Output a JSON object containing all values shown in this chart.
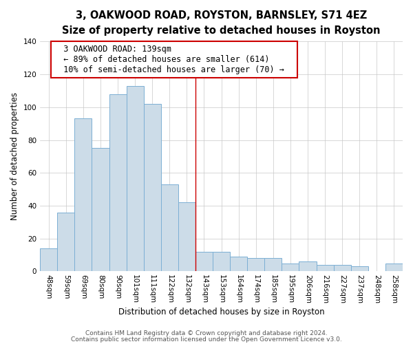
{
  "title": "3, OAKWOOD ROAD, ROYSTON, BARNSLEY, S71 4EZ",
  "subtitle": "Size of property relative to detached houses in Royston",
  "xlabel": "Distribution of detached houses by size in Royston",
  "ylabel": "Number of detached properties",
  "bar_labels": [
    "48sqm",
    "59sqm",
    "69sqm",
    "80sqm",
    "90sqm",
    "101sqm",
    "111sqm",
    "122sqm",
    "132sqm",
    "143sqm",
    "153sqm",
    "164sqm",
    "174sqm",
    "185sqm",
    "195sqm",
    "206sqm",
    "216sqm",
    "227sqm",
    "237sqm",
    "248sqm",
    "258sqm"
  ],
  "bar_values": [
    14,
    36,
    93,
    75,
    108,
    113,
    102,
    53,
    42,
    12,
    12,
    9,
    8,
    8,
    5,
    6,
    4,
    4,
    3,
    0,
    5
  ],
  "bar_color": "#ccdce8",
  "bar_edge_color": "#7bafd4",
  "annotation_title": "3 OAKWOOD ROAD: 139sqm",
  "annotation_line1": "← 89% of detached houses are smaller (614)",
  "annotation_line2": "10% of semi-detached houses are larger (70) →",
  "annotation_box_edge_color": "#cc0000",
  "red_line_x": 9,
  "ylim": [
    0,
    140
  ],
  "yticks": [
    0,
    20,
    40,
    60,
    80,
    100,
    120,
    140
  ],
  "footnote1": "Contains HM Land Registry data © Crown copyright and database right 2024.",
  "footnote2": "Contains public sector information licensed under the Open Government Licence v3.0.",
  "title_fontsize": 10.5,
  "subtitle_fontsize": 9,
  "axis_label_fontsize": 8.5,
  "tick_fontsize": 7.5,
  "annotation_fontsize": 8.5,
  "footnote_fontsize": 6.5
}
